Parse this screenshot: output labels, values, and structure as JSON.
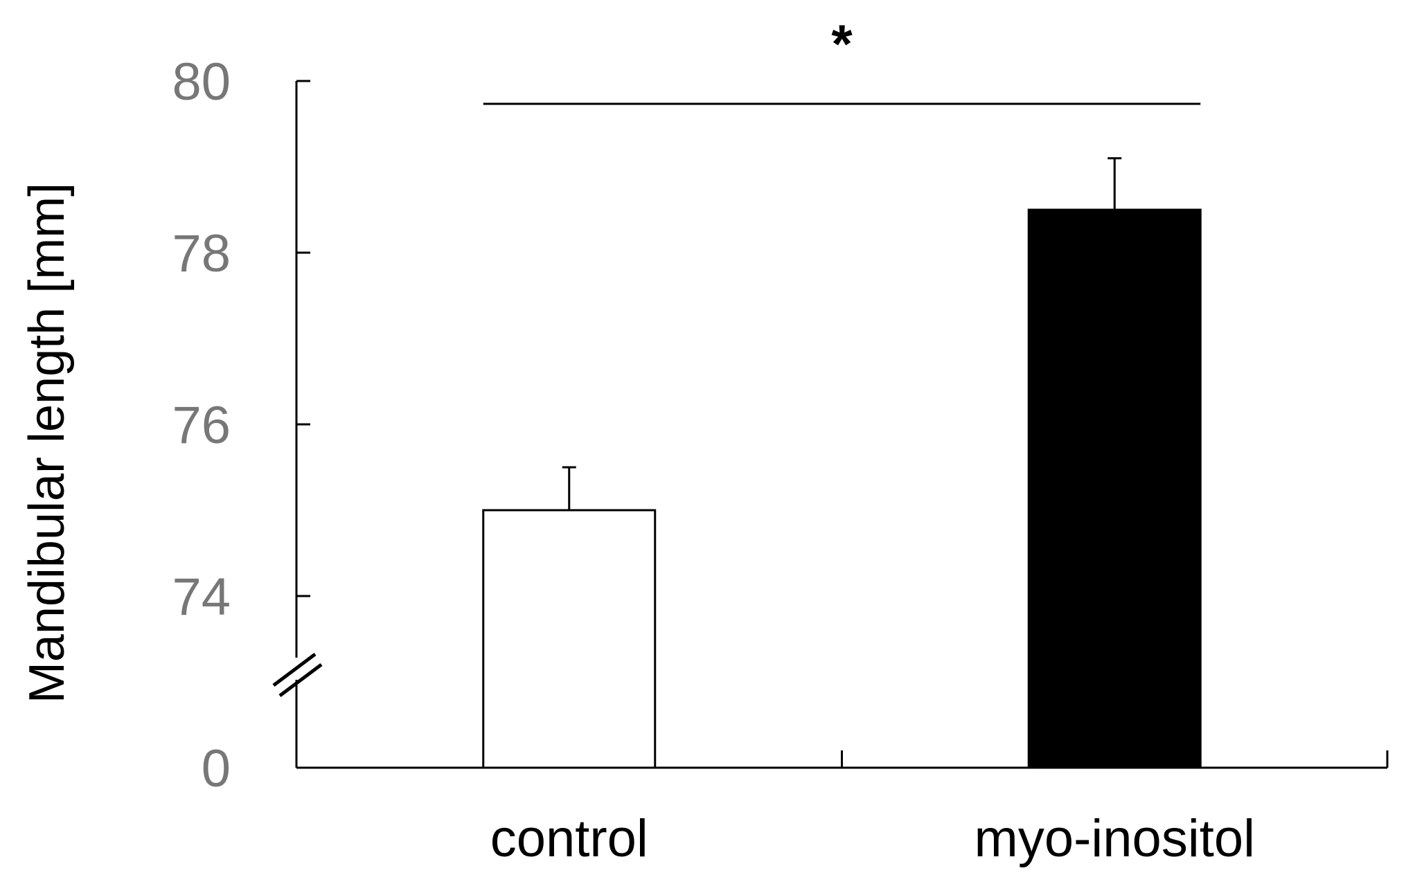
{
  "chart_data": {
    "type": "bar",
    "categories": [
      "control",
      "myo-inositol"
    ],
    "values": [
      75.0,
      78.5
    ],
    "error_bars": [
      0.5,
      0.6
    ],
    "ylabel": "Mandibular length [mm]",
    "xlabel": "",
    "ylim": [
      73,
      80
    ],
    "y_ticks": [
      0,
      74,
      76,
      78,
      80
    ],
    "axis_break": true,
    "grid": false,
    "significance": {
      "between": [
        "control",
        "myo-inositol"
      ],
      "label": "*"
    },
    "colors": {
      "control": "#ffffff",
      "myo-inositol": "#000000",
      "outline": "#000000",
      "tick_label": "#777777"
    }
  }
}
